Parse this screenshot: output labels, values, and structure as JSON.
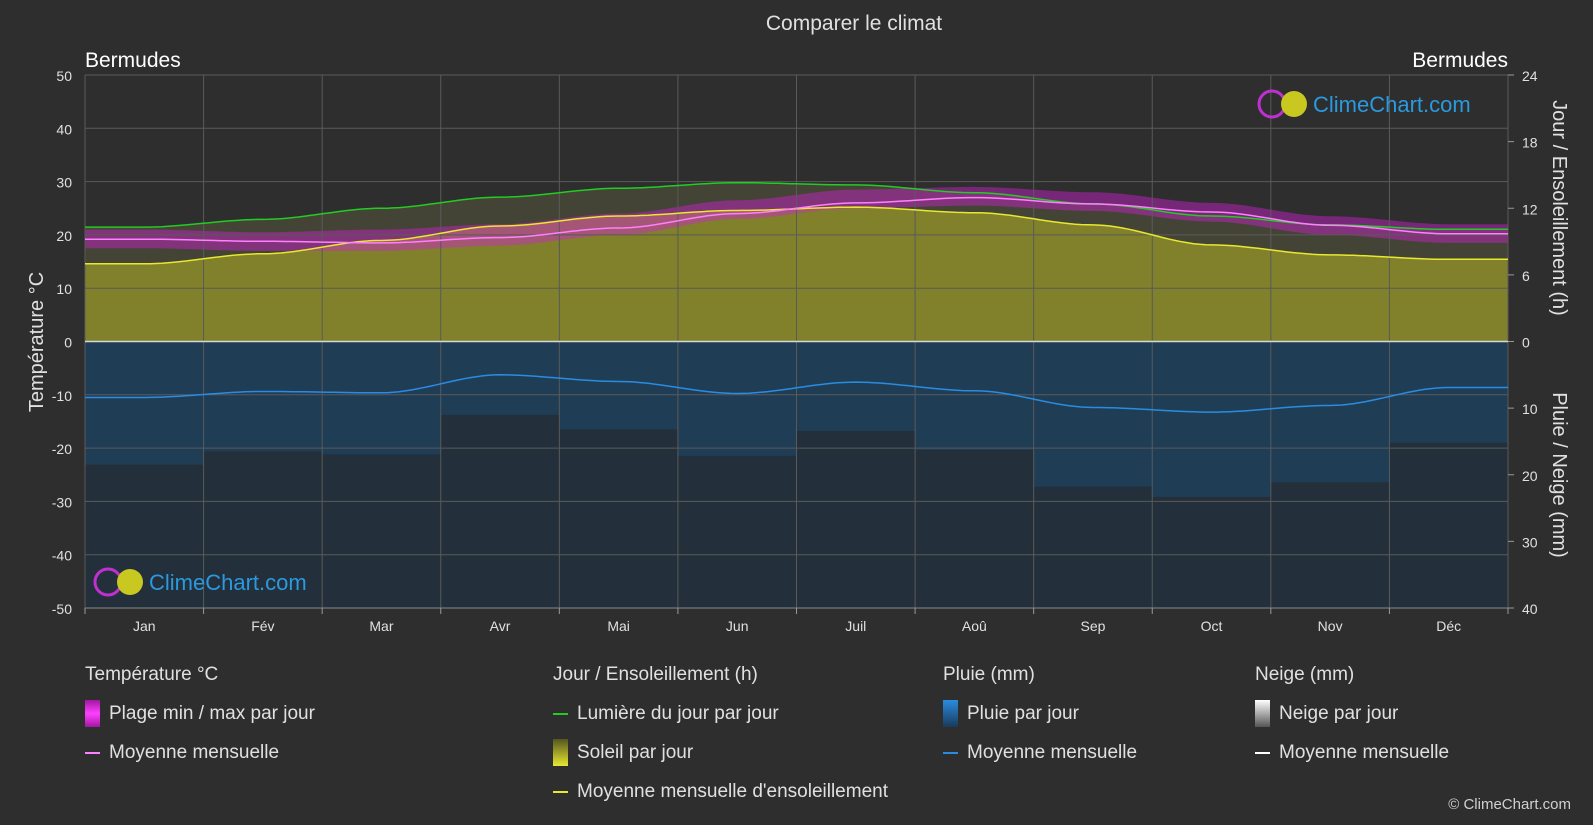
{
  "title": "Comparer le climat",
  "location_left": "Bermudes",
  "location_right": "Bermudes",
  "axis_left_label": "Température °C",
  "axis_right_top_label": "Jour / Ensoleillement (h)",
  "axis_right_bottom_label": "Pluie / Neige (mm)",
  "logo_text": "ClimeChart.com",
  "copyright": "© ClimeChart.com",
  "legend": {
    "temperature": {
      "header": "Température °C",
      "range": "Plage min / max par jour",
      "mean": "Moyenne mensuelle"
    },
    "sun": {
      "header": "Jour / Ensoleillement (h)",
      "daylight": "Lumière du jour par jour",
      "sunshine": "Soleil par jour",
      "sunshine_mean": "Moyenne mensuelle d'ensoleillement"
    },
    "rain": {
      "header": "Pluie (mm)",
      "per_day": "Pluie par jour",
      "mean": "Moyenne mensuelle"
    },
    "snow": {
      "header": "Neige (mm)",
      "per_day": "Neige par jour",
      "mean": "Moyenne mensuelle"
    }
  },
  "colors": {
    "background": "#2e2e2e",
    "grid": "#5a5a5a",
    "temp_range": "#d020d0",
    "temp_mean": "#ff80ff",
    "daylight": "#22cc22",
    "sunshine_fill": "#8c8c2a",
    "sunshine_mean": "#e8e830",
    "rain_fill": "#1e5a8c",
    "rain_mean": "#2a8ce0",
    "snow_mean": "#ffffff",
    "logo_text": "#2a9ae0"
  },
  "chart_data": {
    "type": "area",
    "categories": [
      "Jan",
      "Fév",
      "Mar",
      "Avr",
      "Mai",
      "Jun",
      "Juil",
      "Aoû",
      "Sep",
      "Oct",
      "Nov",
      "Déc"
    ],
    "y_left": {
      "label": "Température °C",
      "ticks": [
        50,
        40,
        30,
        20,
        10,
        0,
        -10,
        -20,
        -30,
        -40,
        -50
      ],
      "range": [
        -50,
        50
      ]
    },
    "y_right_top": {
      "label": "Jour / Ensoleillement (h)",
      "ticks": [
        24,
        18,
        12,
        6,
        0
      ],
      "range": [
        0,
        24
      ]
    },
    "y_right_bottom": {
      "label": "Pluie / Neige (mm)",
      "ticks": [
        0,
        10,
        20,
        30,
        40
      ],
      "range": [
        0,
        40
      ]
    },
    "grid": true,
    "series": [
      {
        "name": "Lumière du jour par jour",
        "unit": "h",
        "values": [
          10.3,
          11.0,
          12.0,
          13.0,
          13.8,
          14.3,
          14.1,
          13.4,
          12.4,
          11.3,
          10.5,
          10.1
        ]
      },
      {
        "name": "Soleil par jour",
        "unit": "h",
        "values": [
          7.0,
          7.9,
          9.1,
          10.4,
          11.3,
          11.8,
          12.1,
          11.6,
          10.5,
          8.7,
          7.8,
          7.4
        ]
      },
      {
        "name": "Moyenne mensuelle d'ensoleillement",
        "unit": "h",
        "values": [
          7.0,
          7.9,
          9.1,
          10.4,
          11.3,
          11.8,
          12.1,
          11.6,
          10.5,
          8.7,
          7.8,
          7.4
        ]
      },
      {
        "name": "Plage min / max par jour",
        "unit": "°C",
        "min": [
          17.5,
          17.0,
          17.0,
          18.0,
          20.0,
          23.0,
          25.0,
          25.5,
          24.5,
          22.5,
          20.0,
          18.5
        ],
        "max": [
          21.0,
          20.5,
          21.0,
          22.0,
          24.0,
          26.5,
          28.5,
          29.0,
          28.0,
          26.0,
          23.5,
          22.0
        ]
      },
      {
        "name": "Moyenne mensuelle",
        "unit": "°C",
        "values": [
          19.2,
          18.8,
          18.5,
          19.5,
          21.3,
          24.0,
          26.0,
          27.0,
          25.8,
          24.3,
          21.8,
          20.2
        ]
      },
      {
        "name": "Pluie par jour",
        "unit": "mm",
        "values": [
          8.4,
          7.5,
          7.7,
          5.0,
          6.0,
          7.8,
          6.1,
          7.4,
          9.9,
          10.6,
          9.6,
          6.9
        ]
      },
      {
        "name": "Moyenne mensuelle",
        "unit": "mm",
        "values": [
          8.4,
          7.5,
          7.7,
          5.0,
          6.0,
          7.8,
          6.1,
          7.4,
          9.9,
          10.6,
          9.6,
          6.9
        ]
      }
    ]
  }
}
